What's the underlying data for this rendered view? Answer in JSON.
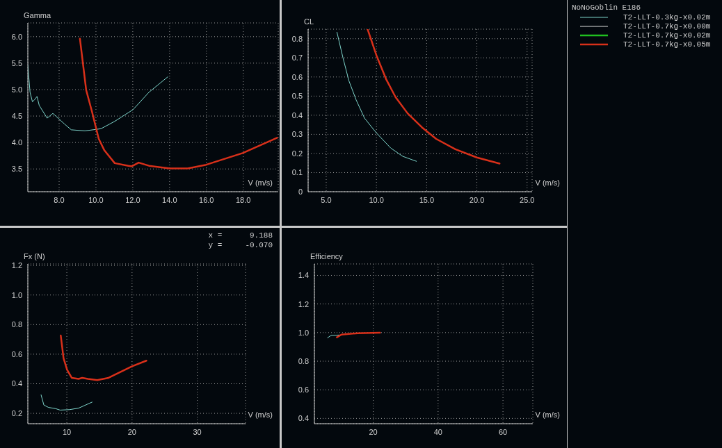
{
  "chart_data": [
    {
      "type": "line",
      "ylabel": "Gamma",
      "xlabel": "V (m/s)",
      "legend_title": "NoNoGoblin E186",
      "legend": "right",
      "grid": true,
      "line_style": "solid",
      "marker": "none",
      "xlim": [
        6.3,
        19.9
      ],
      "ylim": [
        3.07,
        6.26
      ],
      "xticks": [
        {
          "value": 8,
          "label": "8.0"
        },
        {
          "value": 10,
          "label": "10.0"
        },
        {
          "value": 12,
          "label": "12.0"
        },
        {
          "value": 14,
          "label": "14.0"
        },
        {
          "value": 16,
          "label": "16.0"
        },
        {
          "value": 18,
          "label": "18.0"
        }
      ],
      "yticks": [
        3.5,
        {
          "value": 4,
          "label": "4.0"
        },
        4.5,
        {
          "value": 5,
          "label": "5.0"
        },
        5.5,
        {
          "value": 6,
          "label": "6.0"
        }
      ],
      "series": [
        {
          "name": "T2-LLT-0.3kg-x0.02m",
          "color": "#7fd6cc",
          "x": [
            6.3,
            6.42,
            6.55,
            6.67,
            6.8,
            6.92,
            7.35,
            7.66,
            8.29,
            8.66,
            9.4,
            10.27,
            11.02,
            12.01,
            12.88,
            13.9
          ],
          "values": [
            5.47,
            4.95,
            4.77,
            4.81,
            4.87,
            4.7,
            4.46,
            4.55,
            4.35,
            4.24,
            4.22,
            4.26,
            4.4,
            4.62,
            4.95,
            5.24
          ]
        },
        {
          "name": "T2-LLT-0.7kg-x0.00m",
          "color": "#e0e0e0"
        },
        {
          "name": "T2-LLT-0.7kg-x0.02m",
          "color": "#20c020"
        },
        {
          "name": "T2-LLT-0.7kg-x0.05m",
          "color": "#d8301a",
          "x": [
            9.13,
            9.47,
            9.78,
            10.15,
            10.46,
            11.02,
            11.76,
            11.95,
            12.32,
            12.88,
            14.0,
            14.99,
            15.99,
            17.97,
            19.84
          ],
          "values": [
            5.96,
            4.99,
            4.59,
            4.07,
            3.85,
            3.61,
            3.56,
            3.55,
            3.62,
            3.56,
            3.51,
            3.51,
            3.58,
            3.8,
            4.09
          ]
        }
      ]
    },
    {
      "type": "line",
      "ylabel": "CL",
      "xlabel": "V (m/s)",
      "grid": true,
      "line_style": "solid",
      "marker": "none",
      "xlim": [
        3.2,
        25.5
      ],
      "ylim": [
        0,
        0.85
      ],
      "xticks": [
        {
          "value": 5,
          "label": "5.0"
        },
        {
          "value": 10,
          "label": "10.0"
        },
        {
          "value": 15,
          "label": "15.0"
        },
        {
          "value": 20,
          "label": "20.0"
        },
        {
          "value": 25,
          "label": "25.0"
        }
      ],
      "yticks": [
        0,
        0.1,
        0.2,
        0.3,
        0.4,
        0.5,
        0.6,
        0.7,
        0.8
      ],
      "series": [
        {
          "color": "#7fd6cc",
          "x": [
            6.07,
            6.67,
            7.26,
            7.98,
            8.81,
            10.0,
            11.43,
            12.62,
            13.98
          ],
          "values": [
            0.834,
            0.7,
            0.58,
            0.48,
            0.385,
            0.307,
            0.228,
            0.185,
            0.159
          ]
        },
        {
          "color": "#d8301a",
          "x": [
            9.12,
            10.0,
            10.95,
            11.9,
            13.1,
            14.52,
            15.95,
            17.86,
            20.0,
            22.26
          ],
          "values": [
            0.85,
            0.713,
            0.59,
            0.495,
            0.41,
            0.337,
            0.276,
            0.222,
            0.179,
            0.147
          ]
        }
      ]
    },
    {
      "type": "line",
      "ylabel": "Fx (N)",
      "xlabel": "V (m/s)",
      "grid": true,
      "line_style": "solid",
      "marker": "none",
      "annotations": [
        "x =      9.188",
        "y =     -0.070"
      ],
      "xlim": [
        4.02,
        37.4
      ],
      "ylim": [
        0.13,
        1.21
      ],
      "xticks": [
        10,
        20,
        30
      ],
      "yticks": [
        0.2,
        0.4,
        0.6,
        0.8,
        {
          "value": 1,
          "label": "1.0"
        },
        1.2
      ],
      "series": [
        {
          "color": "#7fd6cc",
          "x": [
            6.05,
            6.48,
            7.19,
            8.26,
            8.97,
            10.4,
            11.8,
            13.88
          ],
          "values": [
            0.325,
            0.256,
            0.24,
            0.232,
            0.222,
            0.225,
            0.235,
            0.276
          ]
        },
        {
          "color": "#d8301a",
          "x": [
            9.07,
            9.5,
            10.04,
            10.75,
            11.8,
            12.35,
            13.24,
            14.66,
            16.4,
            18.2,
            20.0,
            22.2
          ],
          "values": [
            0.726,
            0.572,
            0.495,
            0.44,
            0.433,
            0.44,
            0.433,
            0.425,
            0.44,
            0.479,
            0.518,
            0.556
          ]
        }
      ]
    },
    {
      "type": "line",
      "ylabel": "Efficiency",
      "xlabel": "V (m/s)",
      "grid": true,
      "line_style": "solid",
      "marker": "none",
      "xlim": [
        1.86,
        69.2
      ],
      "ylim": [
        0.363,
        1.48
      ],
      "xticks": [
        20,
        40,
        60
      ],
      "yticks": [
        0.4,
        0.6,
        0.8,
        {
          "value": 1,
          "label": "1.0"
        },
        1.2,
        1.4
      ],
      "series": [
        {
          "color": "#7fd6cc",
          "x": [
            5.94,
            7.0,
            9.5
          ],
          "values": [
            0.964,
            0.98,
            0.983
          ]
        },
        {
          "color": "#d8301a",
          "x": [
            8.8,
            10.2,
            15.2,
            22.1
          ],
          "values": [
            0.967,
            0.986,
            0.996,
            0.999
          ]
        }
      ]
    }
  ]
}
